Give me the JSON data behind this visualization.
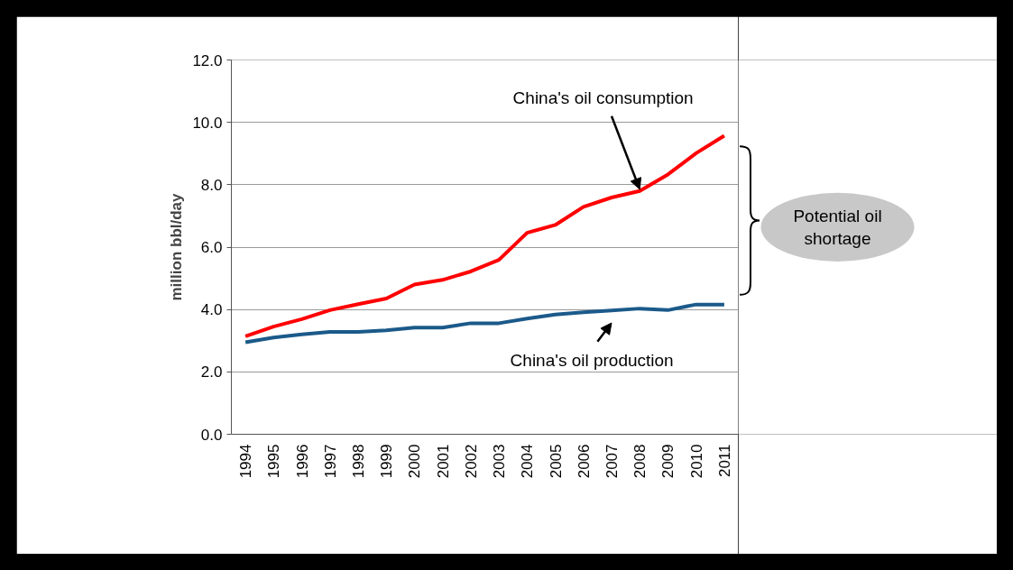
{
  "chart_data": {
    "type": "line",
    "ylabel": "million bbl/day",
    "categories": [
      "1994",
      "1995",
      "1996",
      "1997",
      "1998",
      "1999",
      "2000",
      "2001",
      "2002",
      "2003",
      "2004",
      "2005",
      "2006",
      "2007",
      "2008",
      "2009",
      "2010",
      "2011"
    ],
    "series": [
      {
        "color": "#ff0000",
        "values": [
          3.14,
          3.45,
          3.69,
          3.98,
          4.17,
          4.35,
          4.8,
          4.95,
          5.22,
          5.59,
          6.46,
          6.71,
          7.29,
          7.59,
          7.8,
          8.33,
          9.01,
          9.57
        ]
      },
      {
        "color": "#1b5a8a",
        "values": [
          2.95,
          3.1,
          3.2,
          3.28,
          3.28,
          3.33,
          3.42,
          3.42,
          3.56,
          3.56,
          3.71,
          3.84,
          3.91,
          3.97,
          4.03,
          3.98,
          4.16,
          4.16
        ]
      }
    ],
    "ylim": [
      0,
      12
    ],
    "yticks": [
      {
        "value": 0,
        "label": "0.0"
      },
      {
        "value": 2,
        "label": "2.0"
      },
      {
        "value": 4,
        "label": "4.0"
      },
      {
        "value": 6,
        "label": "6.0"
      },
      {
        "value": 8,
        "label": "8.0"
      },
      {
        "value": 10,
        "label": "10.0"
      },
      {
        "value": 12,
        "label": "12.0"
      }
    ],
    "grid": "y",
    "annotations": [
      {
        "text": "China's oil consumption",
        "x": "2008",
        "y": 7.8
      },
      {
        "text": "China's oil production",
        "x": "2007",
        "y": 3.97
      },
      "Potential oil shortage"
    ]
  }
}
